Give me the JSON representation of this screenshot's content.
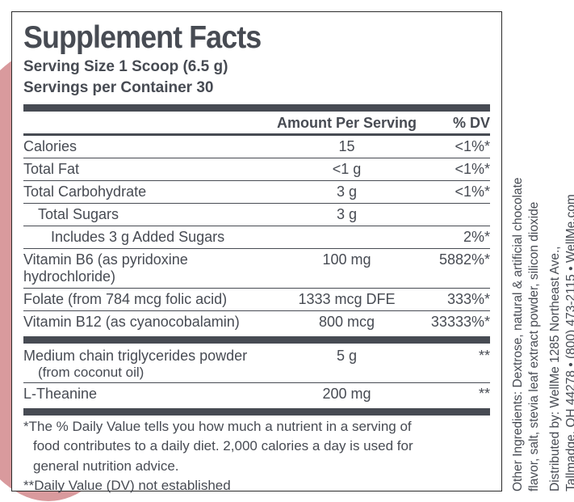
{
  "title": "Supplement Facts",
  "serving_size": "Serving Size 1 Scoop (6.5 g)",
  "servings_per_container": "Servings per Container 30",
  "headers": {
    "amount": "Amount Per Serving",
    "dv": "% DV"
  },
  "rows": [
    {
      "name": "Calories",
      "amt": "15",
      "dv": "<1%*",
      "indent": 0,
      "rule_after": "thin"
    },
    {
      "name": "Total Fat",
      "amt": "<1 g",
      "dv": "<1%*",
      "indent": 0,
      "rule_after": "thin"
    },
    {
      "name": "Total Carbohydrate",
      "amt": "3 g",
      "dv": "<1%*",
      "indent": 0,
      "rule_after": "thin"
    },
    {
      "name": "Total Sugars",
      "amt": "3 g",
      "dv": "",
      "indent": 1,
      "rule_after": "thin"
    },
    {
      "name": "Includes 3 g Added Sugars",
      "amt": "",
      "dv": "2%*",
      "indent": 2,
      "rule_after": "thin"
    },
    {
      "name": "Vitamin B6 (as pyridoxine hydrochloride)",
      "amt": "100 mg",
      "dv": "5882%*",
      "indent": 0,
      "rule_after": "thin"
    },
    {
      "name": "Folate (from 784 mcg folic acid)",
      "amt": "1333 mcg DFE",
      "dv": "333%*",
      "indent": 0,
      "rule_after": "thin"
    },
    {
      "name": "Vitamin B12 (as cyanocobalamin)",
      "amt": "800 mcg",
      "dv": "33333%*",
      "indent": 0,
      "rule_after": "thick"
    },
    {
      "name": "Medium chain triglycerides powder",
      "sub": "(from coconut oil)",
      "amt": "5 g",
      "dv": "**",
      "indent": 0,
      "rule_after": "thin"
    },
    {
      "name": "L-Theanine",
      "amt": "200 mg",
      "dv": "**",
      "indent": 0,
      "rule_after": "thick"
    }
  ],
  "footnote1a": "*The % Daily Value tells you how much a nutrient in a serving of",
  "footnote1b": "food contributes to a daily diet. 2,000 calories a day is used for",
  "footnote1c": "general nutrition advice.",
  "footnote2": "**Daily Value (DV) not established",
  "other_ingredients_l1": "Other Ingredients: Dextrose, natural & artificial chocolate",
  "other_ingredients_l2": "flavor, salt, stevia leaf extract powder, silicon dioxide",
  "distributed_l1": "Distributed by: WellMe 1285 Northeast Ave.,",
  "distributed_l2": "Tallmadge, OH 44278 • (800) 473-2115 • WellMe.com",
  "colors": {
    "text": "#474b53",
    "border": "#2b2b2b",
    "blob": "#d99a9d",
    "background": "#ffffff"
  }
}
